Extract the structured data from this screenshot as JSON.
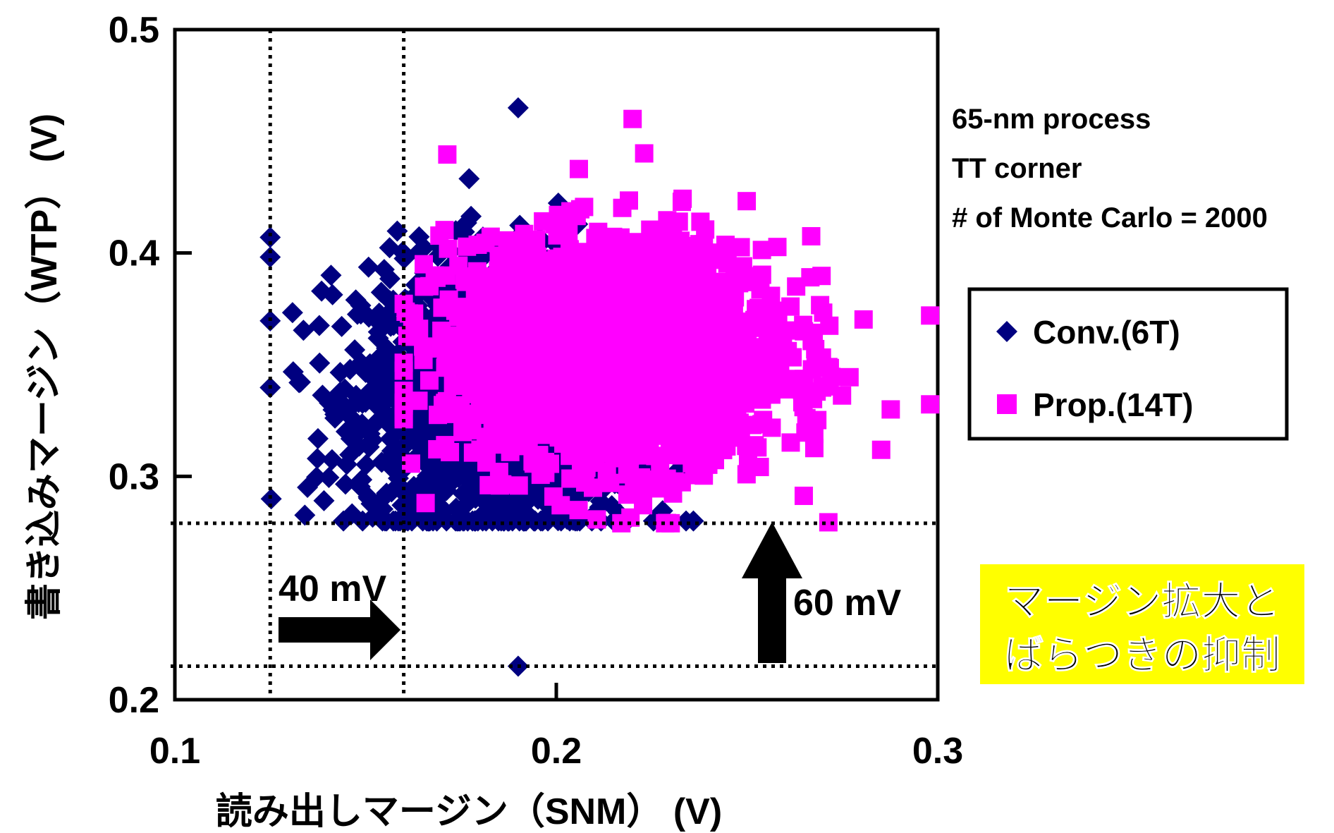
{
  "chart_data": {
    "type": "scatter",
    "title": "",
    "xlabel": "読み出しマージン（SNM） (V)",
    "ylabel": "書き込みマージン（WTP） (V)",
    "xlim": [
      0.1,
      0.3
    ],
    "ylim": [
      0.2,
      0.5
    ],
    "x_ticks": [
      "0.1",
      "0.2",
      "0.3"
    ],
    "y_ticks": [
      "0.2",
      "0.3",
      "0.4",
      "0.5"
    ],
    "grid": false,
    "legend_position": "right",
    "annotations": {
      "process_lines": [
        "65-nm process",
        "TT corner",
        "# of Monte Carlo = 2000"
      ],
      "x_shift_label": "40 mV",
      "y_shift_label": "60 mV",
      "highlight_lines": [
        "マージン拡大と",
        "ばらつきの抑制"
      ]
    },
    "reference_lines": {
      "x": [
        0.125,
        0.16
      ],
      "y": [
        0.215,
        0.279
      ]
    },
    "series": [
      {
        "name": "Conv.(6T)",
        "marker": "diamond",
        "color": "#000080",
        "n_points": 2000,
        "center": [
          0.185,
          0.335
        ],
        "spread": [
          0.018,
          0.03
        ],
        "min_point": [
          0.125,
          0.28
        ],
        "extremes": [
          [
            0.19,
            0.215
          ],
          [
            0.19,
            0.465
          ],
          [
            0.125,
            0.407
          ]
        ]
      },
      {
        "name": "Prop.(14T)",
        "marker": "square",
        "color": "#ff00ff",
        "n_points": 2000,
        "center": [
          0.215,
          0.355
        ],
        "spread": [
          0.022,
          0.025
        ],
        "min_point": [
          0.16,
          0.279
        ],
        "extremes": [
          [
            0.298,
            0.372
          ],
          [
            0.22,
            0.46
          ],
          [
            0.23,
            0.279
          ]
        ]
      }
    ]
  }
}
